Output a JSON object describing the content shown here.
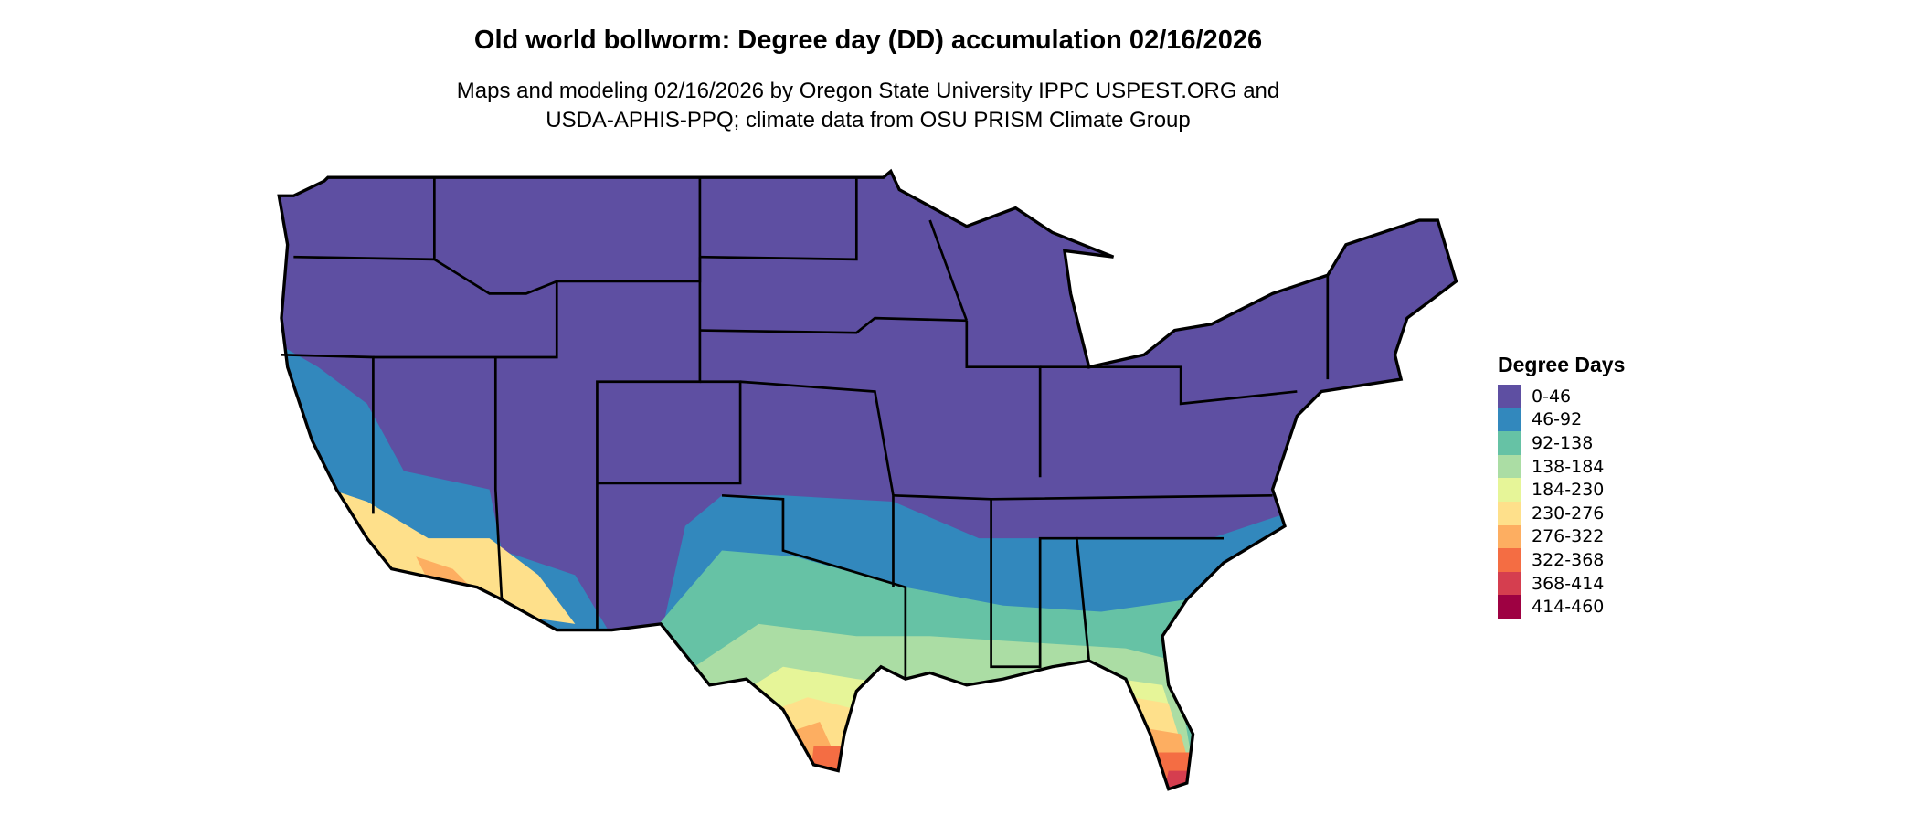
{
  "title": "Old world bollworm: Degree day (DD) accumulation 02/16/2026",
  "subtitle_lines": [
    "Maps and modeling 02/16/2026 by Oregon State University IPPC USPEST.ORG and",
    "USDA-APHIS-PPQ; climate data from OSU PRISM Climate Group"
  ],
  "legend": {
    "title": "Degree Days",
    "items": [
      {
        "label": "0-46",
        "color": "#5E4FA2"
      },
      {
        "label": "46-92",
        "color": "#3288BD"
      },
      {
        "label": "92-138",
        "color": "#66C2A5"
      },
      {
        "label": "138-184",
        "color": "#ABDDA4"
      },
      {
        "label": "184-230",
        "color": "#E6F598"
      },
      {
        "label": "230-276",
        "color": "#FEE08B"
      },
      {
        "label": "276-322",
        "color": "#FDAE61"
      },
      {
        "label": "322-368",
        "color": "#F46D43"
      },
      {
        "label": "368-414",
        "color": "#D53E4F"
      },
      {
        "label": "414-460",
        "color": "#9E0142"
      }
    ]
  },
  "map": {
    "region": "Contiguous United States",
    "borders": "state outlines",
    "border_color": "#000000"
  }
}
